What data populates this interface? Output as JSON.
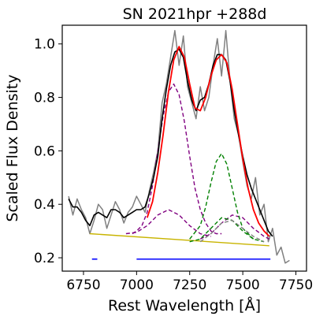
{
  "chart_data": {
    "type": "line",
    "title": "SN 2021hpr  +288d",
    "xlabel": "Rest Wavelength [Å]",
    "ylabel": "Scaled Flux Density",
    "xlim": [
      6650,
      7800
    ],
    "ylim": [
      0.15,
      1.07
    ],
    "xticks": [
      6750,
      7000,
      7250,
      7500,
      7750
    ],
    "yticks": [
      0.2,
      0.4,
      0.6,
      0.8,
      1.0
    ],
    "ytick_labels": [
      "0.2",
      "0.4",
      "0.6",
      "0.8",
      "1.0"
    ],
    "grid": false,
    "series": [
      {
        "role": "raw",
        "color": "#808080",
        "style": "solid",
        "x": [
          6680,
          6700,
          6720,
          6740,
          6760,
          6780,
          6800,
          6820,
          6840,
          6860,
          6880,
          6900,
          6920,
          6940,
          6960,
          6980,
          7000,
          7020,
          7040,
          7060,
          7080,
          7100,
          7120,
          7140,
          7160,
          7180,
          7200,
          7220,
          7240,
          7260,
          7280,
          7300,
          7320,
          7340,
          7360,
          7380,
          7400,
          7420,
          7440,
          7460,
          7480,
          7500,
          7520,
          7540,
          7560,
          7580,
          7600,
          7620,
          7640,
          7660,
          7680,
          7700,
          7720
        ],
        "y": [
          0.43,
          0.36,
          0.42,
          0.38,
          0.35,
          0.29,
          0.34,
          0.4,
          0.38,
          0.31,
          0.36,
          0.41,
          0.38,
          0.33,
          0.37,
          0.39,
          0.43,
          0.4,
          0.37,
          0.45,
          0.52,
          0.6,
          0.78,
          0.85,
          0.95,
          1.05,
          0.92,
          1.03,
          0.84,
          0.78,
          0.72,
          0.84,
          0.75,
          0.8,
          0.92,
          1.02,
          0.88,
          1.05,
          0.86,
          0.72,
          0.66,
          0.56,
          0.47,
          0.42,
          0.5,
          0.36,
          0.4,
          0.26,
          0.31,
          0.21,
          0.24,
          0.18,
          0.19
        ]
      },
      {
        "role": "binned",
        "color": "#000000",
        "style": "solid",
        "x": [
          6680,
          6700,
          6720,
          6740,
          6760,
          6780,
          6800,
          6820,
          6840,
          6860,
          6880,
          6900,
          6920,
          6940,
          6960,
          6980,
          7000,
          7020,
          7040,
          7060,
          7080,
          7100,
          7120,
          7140,
          7160,
          7180,
          7200,
          7220,
          7240,
          7260,
          7280,
          7300,
          7320,
          7340,
          7360,
          7380,
          7400,
          7420,
          7440,
          7460,
          7480,
          7500,
          7520,
          7540,
          7560,
          7580,
          7600,
          7620,
          7640
        ],
        "y": [
          0.42,
          0.39,
          0.39,
          0.37,
          0.34,
          0.32,
          0.36,
          0.37,
          0.36,
          0.35,
          0.38,
          0.38,
          0.37,
          0.35,
          0.36,
          0.37,
          0.38,
          0.38,
          0.39,
          0.44,
          0.5,
          0.58,
          0.72,
          0.83,
          0.92,
          0.97,
          0.98,
          0.95,
          0.86,
          0.79,
          0.75,
          0.79,
          0.8,
          0.85,
          0.92,
          0.96,
          0.96,
          0.94,
          0.86,
          0.75,
          0.66,
          0.58,
          0.51,
          0.46,
          0.42,
          0.38,
          0.34,
          0.3,
          0.28
        ]
      },
      {
        "role": "total-fit",
        "color": "#ff0000",
        "style": "solid",
        "x": [
          7050,
          7075,
          7100,
          7125,
          7150,
          7175,
          7200,
          7225,
          7250,
          7275,
          7300,
          7325,
          7350,
          7375,
          7400,
          7425,
          7450,
          7475,
          7500,
          7525,
          7550,
          7575,
          7600,
          7625
        ],
        "y": [
          0.35,
          0.41,
          0.52,
          0.66,
          0.82,
          0.94,
          0.99,
          0.95,
          0.85,
          0.76,
          0.75,
          0.8,
          0.88,
          0.94,
          0.96,
          0.93,
          0.83,
          0.7,
          0.57,
          0.46,
          0.38,
          0.33,
          0.3,
          0.28
        ]
      },
      {
        "role": "component",
        "color": "#800080",
        "style": "dashed",
        "x": [
          6980,
          7000,
          7025,
          7050,
          7075,
          7100,
          7125,
          7150,
          7175,
          7200,
          7225,
          7250,
          7275,
          7300,
          7325,
          7350,
          7375,
          7400
        ],
        "y": [
          0.29,
          0.3,
          0.32,
          0.37,
          0.47,
          0.6,
          0.73,
          0.82,
          0.85,
          0.81,
          0.71,
          0.58,
          0.46,
          0.38,
          0.33,
          0.3,
          0.29,
          0.29
        ]
      },
      {
        "role": "component",
        "color": "#800080",
        "style": "dashed",
        "x": [
          6950,
          7000,
          7050,
          7100,
          7150,
          7200,
          7250,
          7300,
          7350
        ],
        "y": [
          0.29,
          0.295,
          0.32,
          0.36,
          0.38,
          0.36,
          0.32,
          0.29,
          0.28
        ]
      },
      {
        "role": "component",
        "color": "#800080",
        "style": "dashed",
        "x": [
          7300,
          7350,
          7400,
          7450,
          7500,
          7550,
          7600,
          7625
        ],
        "y": [
          0.27,
          0.29,
          0.33,
          0.36,
          0.35,
          0.31,
          0.28,
          0.27
        ]
      },
      {
        "role": "component",
        "color": "#008000",
        "style": "dashed",
        "x": [
          7250,
          7300,
          7325,
          7350,
          7375,
          7400,
          7425,
          7450,
          7475,
          7500,
          7550
        ],
        "y": [
          0.27,
          0.32,
          0.39,
          0.48,
          0.56,
          0.59,
          0.55,
          0.46,
          0.37,
          0.31,
          0.27
        ]
      },
      {
        "role": "component",
        "color": "#008000",
        "style": "dashed",
        "x": [
          7250,
          7300,
          7350,
          7400,
          7450,
          7500,
          7550,
          7600
        ],
        "y": [
          0.26,
          0.27,
          0.31,
          0.35,
          0.34,
          0.3,
          0.27,
          0.26
        ]
      },
      {
        "role": "component",
        "color": "#808080",
        "style": "dashed",
        "x": [
          7300,
          7350,
          7400,
          7450,
          7500,
          7550,
          7600
        ],
        "y": [
          0.26,
          0.29,
          0.33,
          0.34,
          0.31,
          0.28,
          0.26
        ]
      },
      {
        "role": "continuum",
        "color": "#c8b400",
        "style": "solid",
        "x": [
          6780,
          7625
        ],
        "y": [
          0.29,
          0.245
        ]
      }
    ],
    "ranges": [
      {
        "color": "#0000ff",
        "x": [
          6790,
          6815
        ],
        "y": 0.195
      },
      {
        "color": "#0000ff",
        "x": [
          7000,
          7630
        ],
        "y": 0.195
      }
    ]
  }
}
